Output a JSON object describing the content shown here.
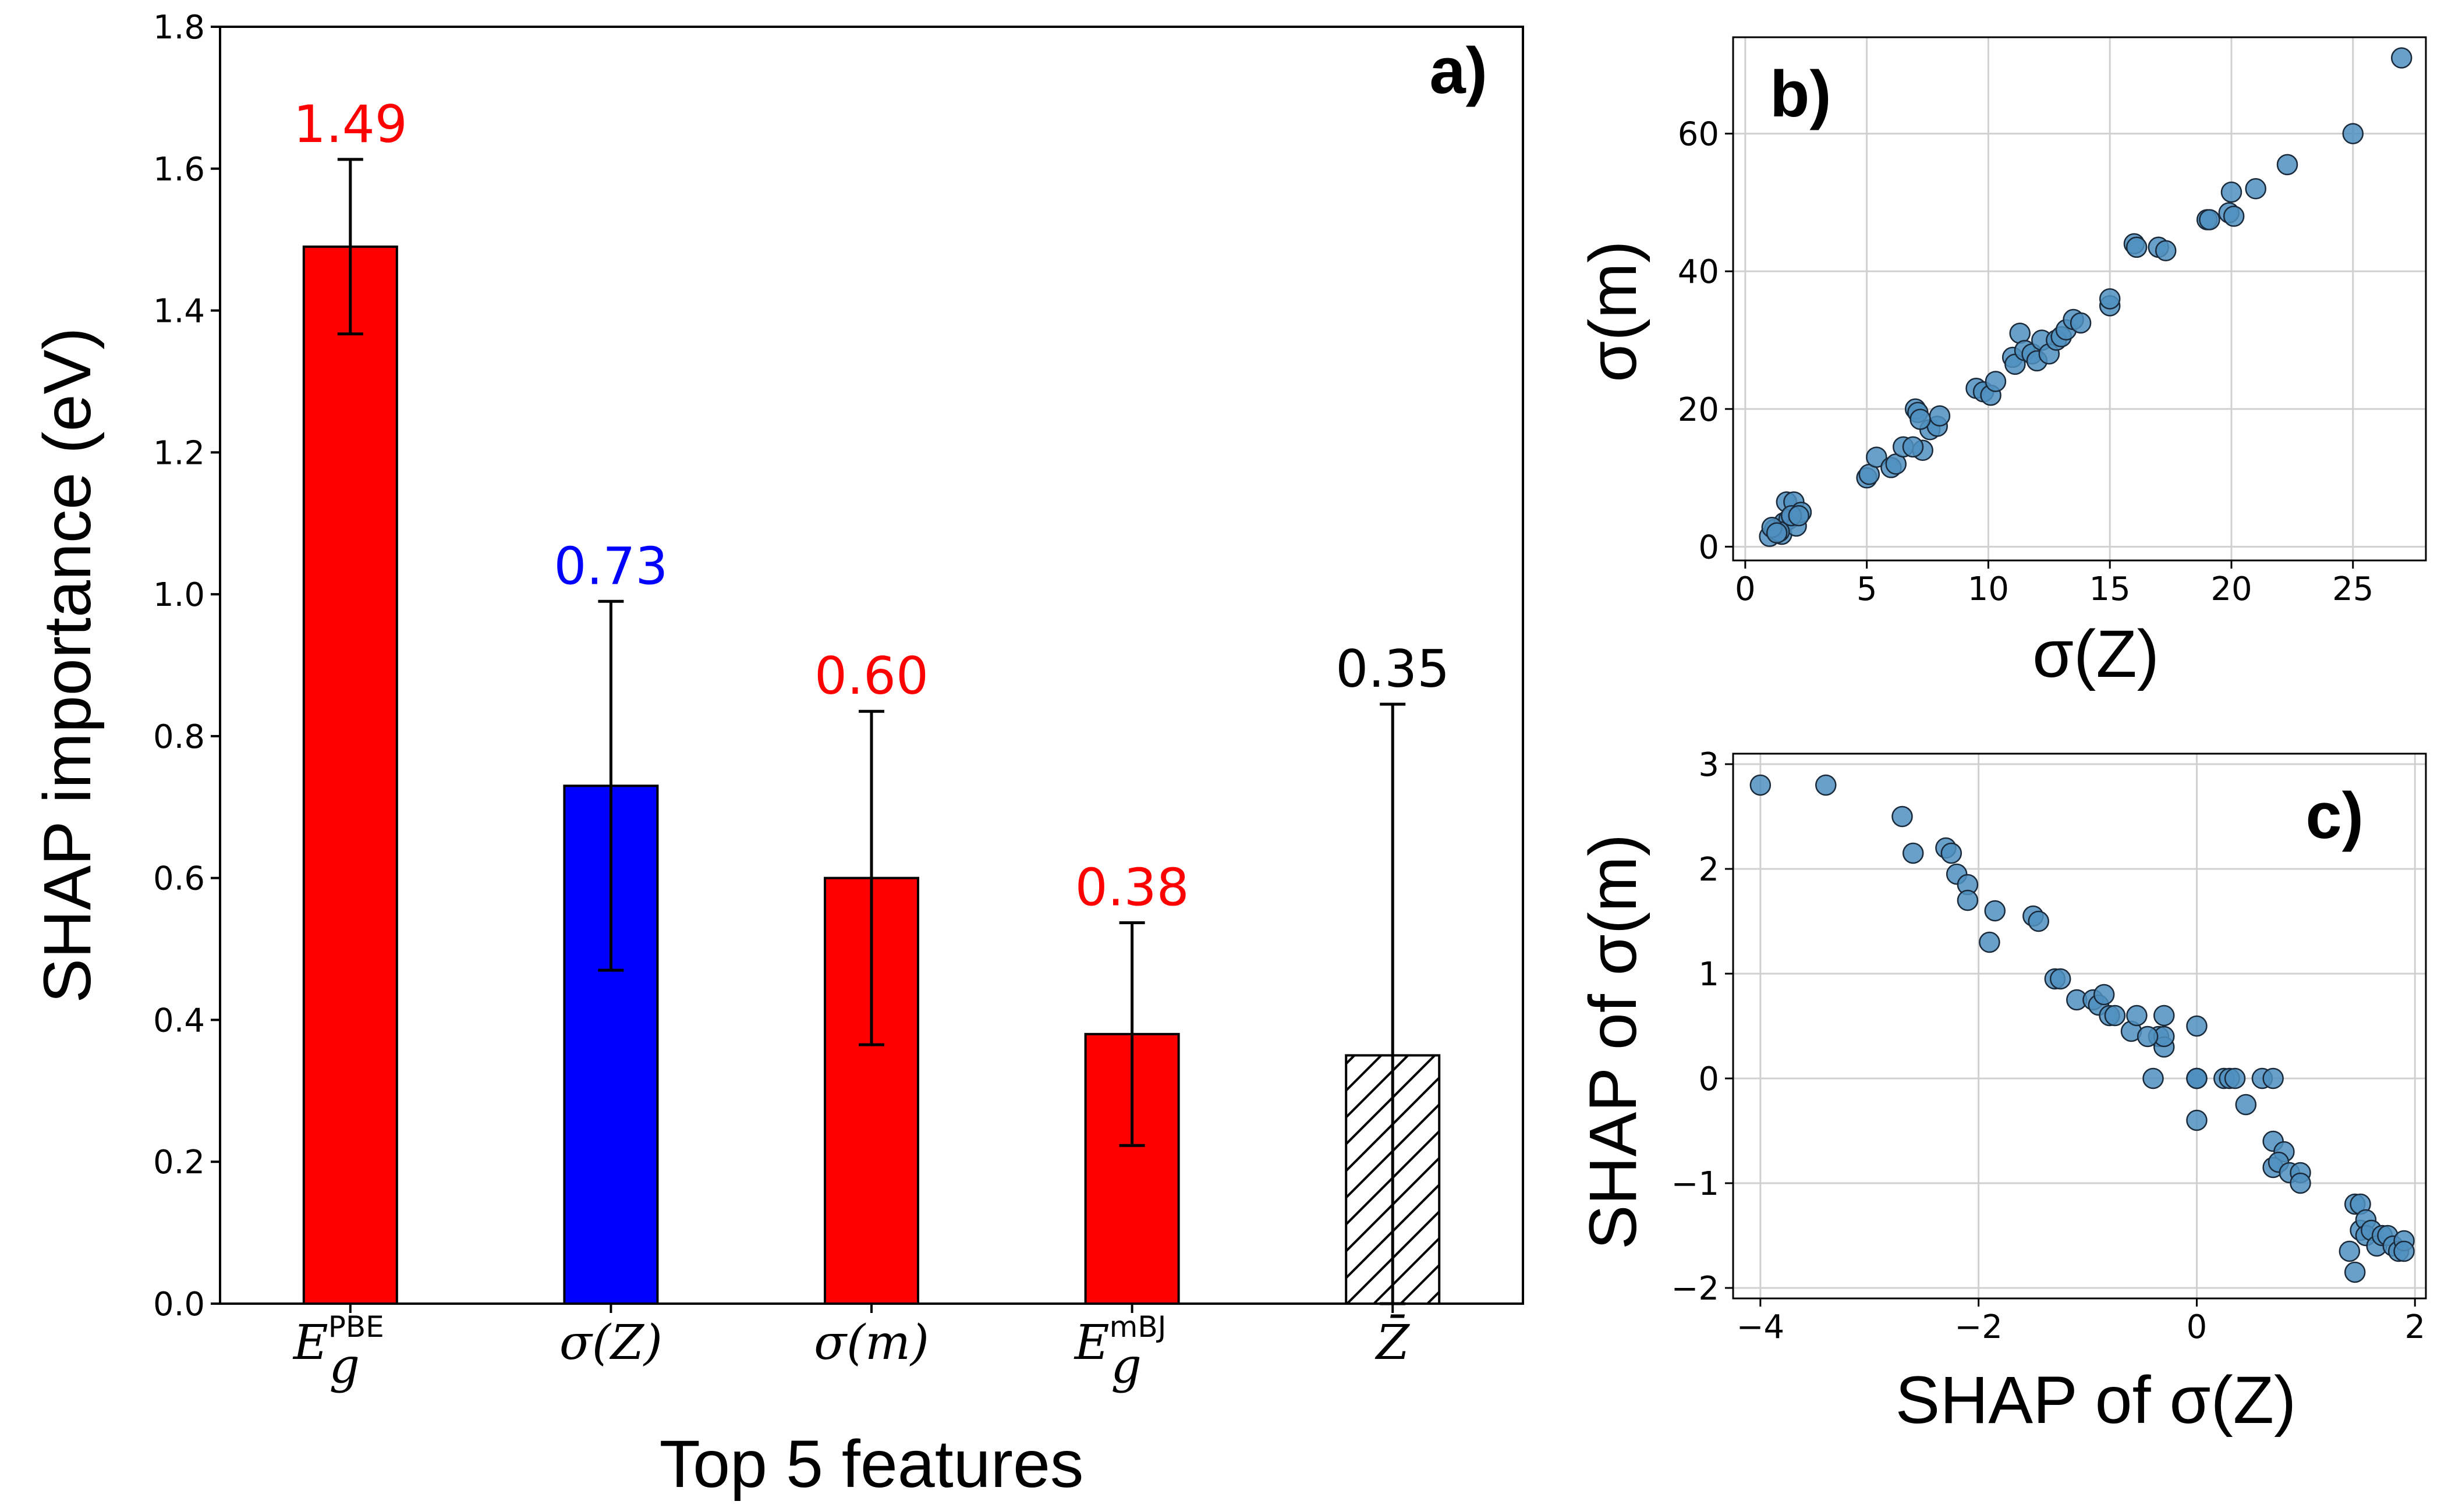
{
  "chart_data": [
    {
      "id": "a",
      "type": "bar",
      "panel_label": "a)",
      "xlabel": "Top  5 features",
      "ylabel": "SHAP importance (eV)",
      "ylim": [
        0,
        1.8
      ],
      "yticks": [
        "0.0",
        "0.2",
        "0.4",
        "0.6",
        "0.8",
        "1.0",
        "1.2",
        "1.4",
        "1.6",
        "1.8"
      ],
      "categories": [
        {
          "main": "E",
          "sub": "g",
          "sup": "PBE",
          "italic_main": true
        },
        {
          "main": "σ(Z)"
        },
        {
          "main": "σ(m)"
        },
        {
          "main": "E",
          "sub": "g",
          "sup": "mBJ",
          "italic_main": true
        },
        {
          "main": "Z̄"
        }
      ],
      "values": [
        1.49,
        0.73,
        0.6,
        0.38,
        0.35
      ],
      "errors": [
        0.123,
        0.26,
        0.235,
        0.157,
        0.495
      ],
      "value_labels": [
        "1.49",
        "0.73",
        "0.60",
        "0.38",
        "0.35"
      ],
      "bar_colors": [
        "#ff0000",
        "#0000ff",
        "#ff0000",
        "#ff0000",
        "#ffffff"
      ],
      "label_colors": [
        "#ff0000",
        "#0000ff",
        "#ff0000",
        "#ff0000",
        "#000000"
      ],
      "hatched": [
        false,
        false,
        false,
        false,
        true
      ]
    },
    {
      "id": "b",
      "type": "scatter",
      "panel_label": "b)",
      "xlabel": "σ(Z)",
      "ylabel": "σ(m)",
      "xlim": [
        -0.5,
        28
      ],
      "ylim": [
        -2,
        74
      ],
      "xticks": [
        0,
        5,
        10,
        15,
        20,
        25
      ],
      "yticks": [
        0,
        20,
        40,
        60
      ],
      "grid": true,
      "point_color": "#4f8fc0",
      "x": [
        1.0,
        1.2,
        1.5,
        1.6,
        1.7,
        1.8,
        2.0,
        2.1,
        2.3,
        1.4,
        1.9,
        2.2,
        1.1,
        1.3,
        5.0,
        5.1,
        5.4,
        6.0,
        6.2,
        6.5,
        7.0,
        7.1,
        7.3,
        7.6,
        7.9,
        8.0,
        7.2,
        6.9,
        9.5,
        9.8,
        10.1,
        10.3,
        11.0,
        11.1,
        11.3,
        11.5,
        11.8,
        12.0,
        12.2,
        12.5,
        12.8,
        13.0,
        13.2,
        13.5,
        13.8,
        15.0,
        15.0,
        16.0,
        16.1,
        17.0,
        17.3,
        19.0,
        19.1,
        19.9,
        20.1,
        20.0,
        21.0,
        22.3,
        25.0,
        27.0
      ],
      "y": [
        1.5,
        2.5,
        1.8,
        3.5,
        6.5,
        4.0,
        6.5,
        3.0,
        5.0,
        2.2,
        4.5,
        4.5,
        2.8,
        2.0,
        10.0,
        10.5,
        13.0,
        11.5,
        12.0,
        14.5,
        20.0,
        19.5,
        14.0,
        17.0,
        17.5,
        19.0,
        18.5,
        14.5,
        23.0,
        22.5,
        22.0,
        24.0,
        27.5,
        26.5,
        31.0,
        28.5,
        28.0,
        27.0,
        30.0,
        28.0,
        30.0,
        30.5,
        31.5,
        33.0,
        32.5,
        35.0,
        36.0,
        44.0,
        43.5,
        43.5,
        43.0,
        47.5,
        47.5,
        48.5,
        48.0,
        51.5,
        52.0,
        55.5,
        60.0,
        71.0
      ]
    },
    {
      "id": "c",
      "type": "scatter",
      "panel_label": "c)",
      "xlabel": "SHAP of σ(Z)",
      "ylabel": "SHAP of σ(m)",
      "xlim": [
        -4.25,
        2.1
      ],
      "ylim": [
        -2.1,
        3.1
      ],
      "xticks": [
        "−4",
        "−2",
        "0",
        "2"
      ],
      "xtick_values": [
        -4,
        -2,
        0,
        2
      ],
      "yticks": [
        "−2",
        "−1",
        "0",
        "1",
        "2",
        "3"
      ],
      "ytick_values": [
        -2,
        -1,
        0,
        1,
        2,
        3
      ],
      "grid": true,
      "point_color": "#4f8fc0",
      "x": [
        -4.0,
        -3.4,
        -2.7,
        -2.6,
        -2.3,
        -2.25,
        -2.2,
        -2.1,
        -2.1,
        -1.85,
        -1.9,
        -1.5,
        -1.45,
        -1.3,
        -1.25,
        -1.1,
        -0.95,
        -0.9,
        -0.85,
        -0.8,
        -0.75,
        -0.6,
        -0.55,
        -0.4,
        -0.35,
        -0.3,
        -0.3,
        -0.3,
        -0.45,
        0.0,
        0.0,
        0.0,
        0.0,
        0.0,
        0.25,
        0.3,
        0.35,
        0.45,
        0.6,
        0.7,
        0.7,
        0.8,
        0.7,
        0.75,
        0.85,
        0.95,
        0.95,
        1.45,
        1.5,
        1.5,
        1.55,
        1.55,
        1.6,
        1.65,
        1.7,
        1.75,
        1.8,
        1.85,
        1.9,
        1.9,
        1.4,
        1.45
      ],
      "y": [
        2.8,
        2.8,
        2.5,
        2.15,
        2.2,
        2.15,
        1.95,
        1.85,
        1.7,
        1.6,
        1.3,
        1.55,
        1.5,
        0.95,
        0.95,
        0.75,
        0.75,
        0.7,
        0.8,
        0.6,
        0.6,
        0.45,
        0.6,
        0.0,
        0.4,
        0.3,
        0.4,
        0.6,
        0.4,
        0.5,
        0.0,
        0.0,
        0.0,
        -0.4,
        0.0,
        0.0,
        0.0,
        -0.25,
        0.0,
        0.0,
        -0.6,
        -0.7,
        -0.85,
        -0.8,
        -0.9,
        -0.9,
        -1.0,
        -1.2,
        -1.2,
        -1.45,
        -1.35,
        -1.5,
        -1.45,
        -1.6,
        -1.5,
        -1.5,
        -1.6,
        -1.65,
        -1.55,
        -1.65,
        -1.65,
        -1.85
      ]
    }
  ]
}
